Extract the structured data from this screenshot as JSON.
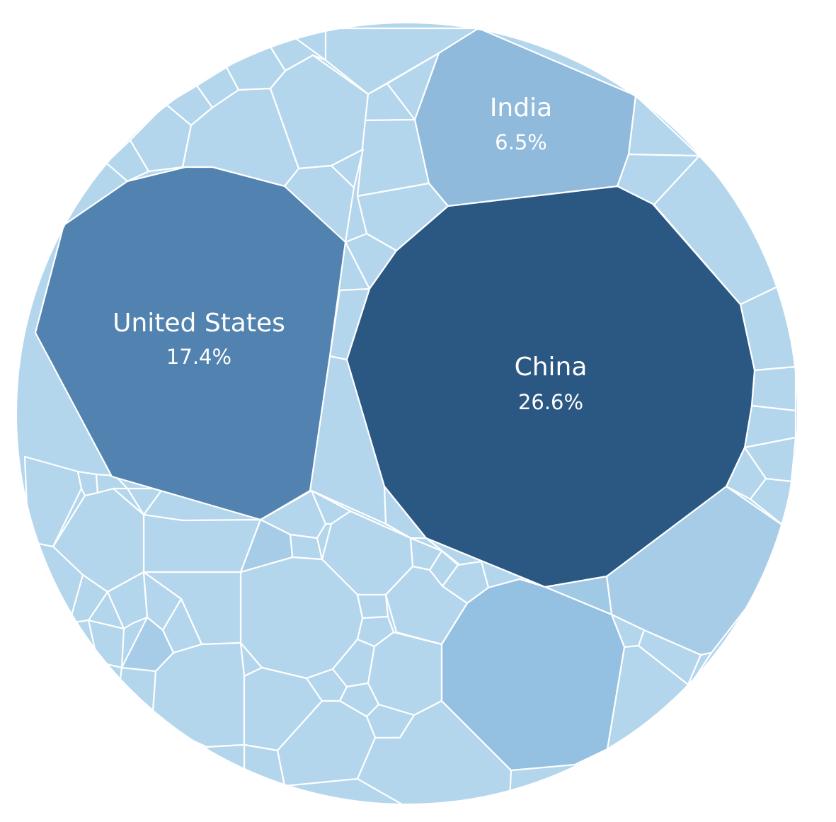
{
  "chart_data": {
    "type": "voronoi-treemap",
    "labeled_cells": [
      {
        "name": "China",
        "value_label": "26.6%",
        "value": 26.6
      },
      {
        "name": "United States",
        "value_label": "17.4%",
        "value": 17.4
      },
      {
        "name": "India",
        "value_label": "6.5%",
        "value": 6.5
      }
    ],
    "unlabeled_cell_count": 62,
    "colors": {
      "China": "#2b5883",
      "United States": "#5283b0",
      "India": "#8fbadc",
      "other": "#b3d6ed",
      "border": "#ffffff"
    }
  }
}
